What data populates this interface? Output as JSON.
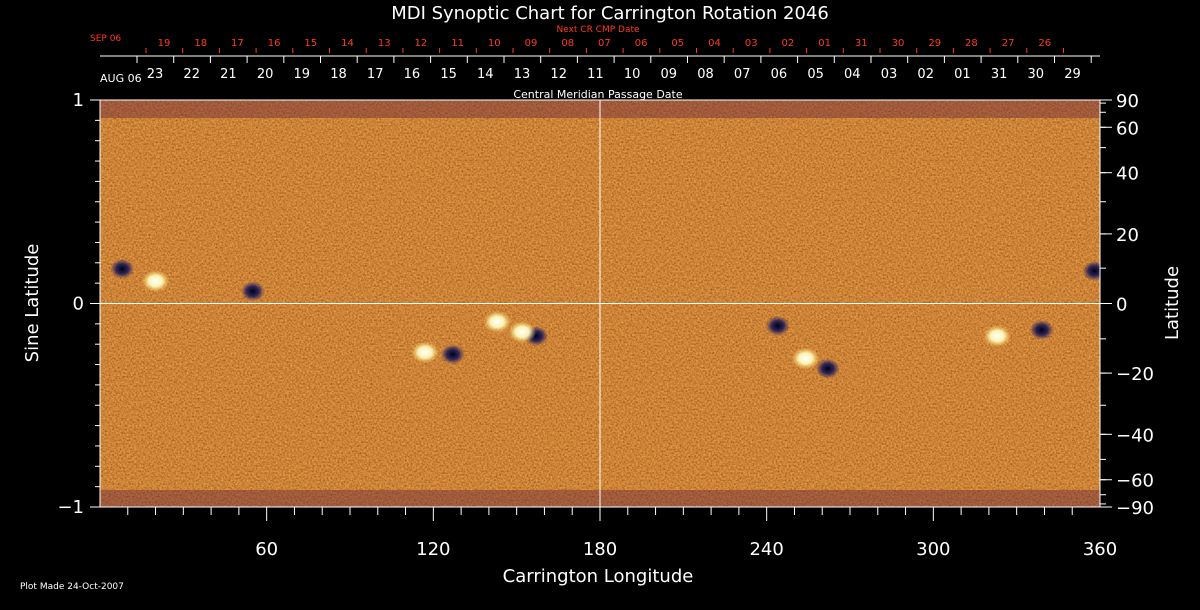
{
  "chart_data": {
    "type": "heatmap",
    "title": "MDI Synoptic Chart for Carrington Rotation 2046",
    "xlabel": "Carrington Longitude",
    "ylabel_left": "Sine Latitude",
    "ylabel_right": "Latitude",
    "xlim": [
      0,
      360
    ],
    "ylim": [
      -1,
      1
    ],
    "x_ticks": [
      60,
      120,
      180,
      240,
      300,
      360
    ],
    "y_ticks_left": [
      1,
      0,
      -1
    ],
    "y_ticks_left_labels": [
      "1",
      "0",
      "−1"
    ],
    "y_ticks_right": [
      90,
      60,
      40,
      20,
      0,
      -20,
      -40,
      -60,
      -90
    ],
    "y_ticks_right_labels": [
      "90",
      "60",
      "40",
      "20",
      "0",
      "−20",
      "−40",
      "−60",
      "−90"
    ],
    "grid_x": [
      180
    ],
    "grid_y": [
      0
    ],
    "cmp_axis_label": "Central Meridian Passage Date",
    "cmp_start_label": "AUG 06",
    "cmp_dates": [
      "23",
      "22",
      "21",
      "20",
      "19",
      "18",
      "17",
      "16",
      "15",
      "14",
      "13",
      "12",
      "11",
      "10",
      "09",
      "08",
      "07",
      "06",
      "05",
      "04",
      "03",
      "02",
      "01",
      "31",
      "30",
      "29"
    ],
    "next_cr_label": "Next CR CMP Date",
    "next_cr_start_label": "SEP 06",
    "next_cr_dates": [
      "19",
      "18",
      "17",
      "16",
      "15",
      "14",
      "13",
      "12",
      "11",
      "10",
      "09",
      "08",
      "07",
      "06",
      "05",
      "04",
      "03",
      "02",
      "01",
      "31",
      "30",
      "29",
      "28",
      "27",
      "26"
    ],
    "active_regions": [
      {
        "lon": 117,
        "sinlat": -0.24,
        "polarity": "positive"
      },
      {
        "lon": 127,
        "sinlat": -0.25,
        "polarity": "negative"
      },
      {
        "lon": 157,
        "sinlat": -0.16,
        "polarity": "negative"
      },
      {
        "lon": 152,
        "sinlat": -0.14,
        "polarity": "positive"
      },
      {
        "lon": 143,
        "sinlat": -0.09,
        "polarity": "positive"
      },
      {
        "lon": 8,
        "sinlat": 0.17,
        "polarity": "negative"
      },
      {
        "lon": 20,
        "sinlat": 0.11,
        "polarity": "positive"
      },
      {
        "lon": 55,
        "sinlat": 0.06,
        "polarity": "negative"
      },
      {
        "lon": 339,
        "sinlat": -0.13,
        "polarity": "negative"
      },
      {
        "lon": 323,
        "sinlat": -0.16,
        "polarity": "positive"
      },
      {
        "lon": 244,
        "sinlat": -0.11,
        "polarity": "negative"
      },
      {
        "lon": 254,
        "sinlat": -0.27,
        "polarity": "positive"
      },
      {
        "lon": 262,
        "sinlat": -0.32,
        "polarity": "negative"
      },
      {
        "lon": 358,
        "sinlat": 0.16,
        "polarity": "negative"
      }
    ],
    "colors": {
      "background": "#000000",
      "field_base": "#e04a12",
      "positive": "#ffffe0",
      "negative": "#1a1a5a",
      "next_cr": "#ff3b1e",
      "axes": "#ffffff"
    }
  },
  "footer": {
    "plot_made": "Plot Made 24-Oct-2007"
  }
}
